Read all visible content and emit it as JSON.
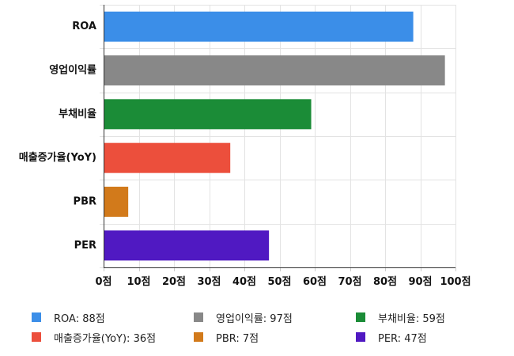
{
  "chart_data": {
    "type": "bar",
    "orientation": "horizontal",
    "categories": [
      "ROA",
      "영업이익률",
      "부채비율",
      "매출증가율(YoY)",
      "PBR",
      "PER"
    ],
    "values": [
      88,
      97,
      59,
      36,
      7,
      47
    ],
    "colors": [
      "#3b8ee8",
      "#888888",
      "#1b8c37",
      "#ec4f3c",
      "#d27a1b",
      "#5019c2"
    ],
    "xlim": [
      0,
      100
    ],
    "x_ticks": [
      0,
      10,
      20,
      30,
      40,
      50,
      60,
      70,
      80,
      90,
      100
    ],
    "x_tick_labels": [
      "0점",
      "10점",
      "20점",
      "30점",
      "40점",
      "50점",
      "60점",
      "70점",
      "80점",
      "90점",
      "100점"
    ],
    "grid": true,
    "legend_position": "bottom",
    "legend": [
      {
        "label": "ROA: 88점",
        "color": "#3b8ee8"
      },
      {
        "label": "영업이익률: 97점",
        "color": "#888888"
      },
      {
        "label": "부채비율: 59점",
        "color": "#1b8c37"
      },
      {
        "label": "매출증가율(YoY): 36점",
        "color": "#ec4f3c"
      },
      {
        "label": "PBR: 7점",
        "color": "#d27a1b"
      },
      {
        "label": "PER: 47점",
        "color": "#5019c2"
      }
    ]
  }
}
